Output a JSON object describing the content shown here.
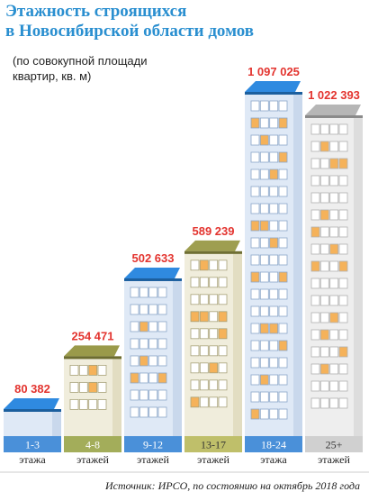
{
  "header": {
    "title_lines": [
      "Этажность строящихся",
      "в Новосибирской области домов"
    ],
    "subtitle_lines": [
      "(по совокупной площади",
      "квартир, кв. м)"
    ]
  },
  "chart_data": {
    "type": "bar",
    "title": "Этажность строящихся в Новосибирской области домов",
    "subtitle": "(по совокупной площади квартир, кв. м)",
    "categories": [
      {
        "name": "1-3",
        "unit": "этажа"
      },
      {
        "name": "4-8",
        "unit": "этажей"
      },
      {
        "name": "9-12",
        "unit": "этажей"
      },
      {
        "name": "13-17",
        "unit": "этажей"
      },
      {
        "name": "18-24",
        "unit": "этажа"
      },
      {
        "name": "25+",
        "unit": "этажей"
      }
    ],
    "values": [
      80382,
      254471,
      502633,
      589239,
      1097025,
      1022393
    ],
    "value_labels": [
      "80 382",
      "254 471",
      "502 633",
      "589 239",
      "1 097 025",
      "1 022 393"
    ],
    "ylim": [
      0,
      1097025
    ],
    "grid": false,
    "colors": {
      "label_value": "#e3342f",
      "label_box": [
        "#4a90d9",
        "#a3ad5a",
        "#4a90d9",
        "#bfbf6a",
        "#4a90d9",
        "#d0d0d0"
      ],
      "label_text": [
        "#ffffff",
        "#ffffff",
        "#ffffff",
        "#333333",
        "#ffffff",
        "#333333"
      ],
      "roof": [
        "#2f8ae0",
        "#9a9a4a",
        "#2f8ae0",
        "#9e9e50",
        "#2f8ae0",
        "#b6b6b6"
      ],
      "roof_dark": [
        "#1c5f9e",
        "#6c6c30",
        "#1c5f9e",
        "#6f6f34",
        "#1c5f9e",
        "#8a8a8a"
      ],
      "facade": [
        "#dfe9f6",
        "#f0eddc",
        "#dfe9f6",
        "#f0eddc",
        "#dfe9f6",
        "#eeeeee"
      ],
      "facade_side": [
        "#c9d8ec",
        "#e2ddc2",
        "#c9d8ec",
        "#e2ddc2",
        "#c9d8ec",
        "#dddddd"
      ],
      "window": "#ffffff",
      "window_lit": "#f5b25a",
      "window_border": [
        "#8aa6c8",
        "#a8a27a",
        "#8aa6c8",
        "#a8a27a",
        "#8aa6c8",
        "#b0b0b0"
      ]
    }
  },
  "footer": {
    "source": "Источник: ИРСО, по состоянию на октябрь 2018 года"
  }
}
